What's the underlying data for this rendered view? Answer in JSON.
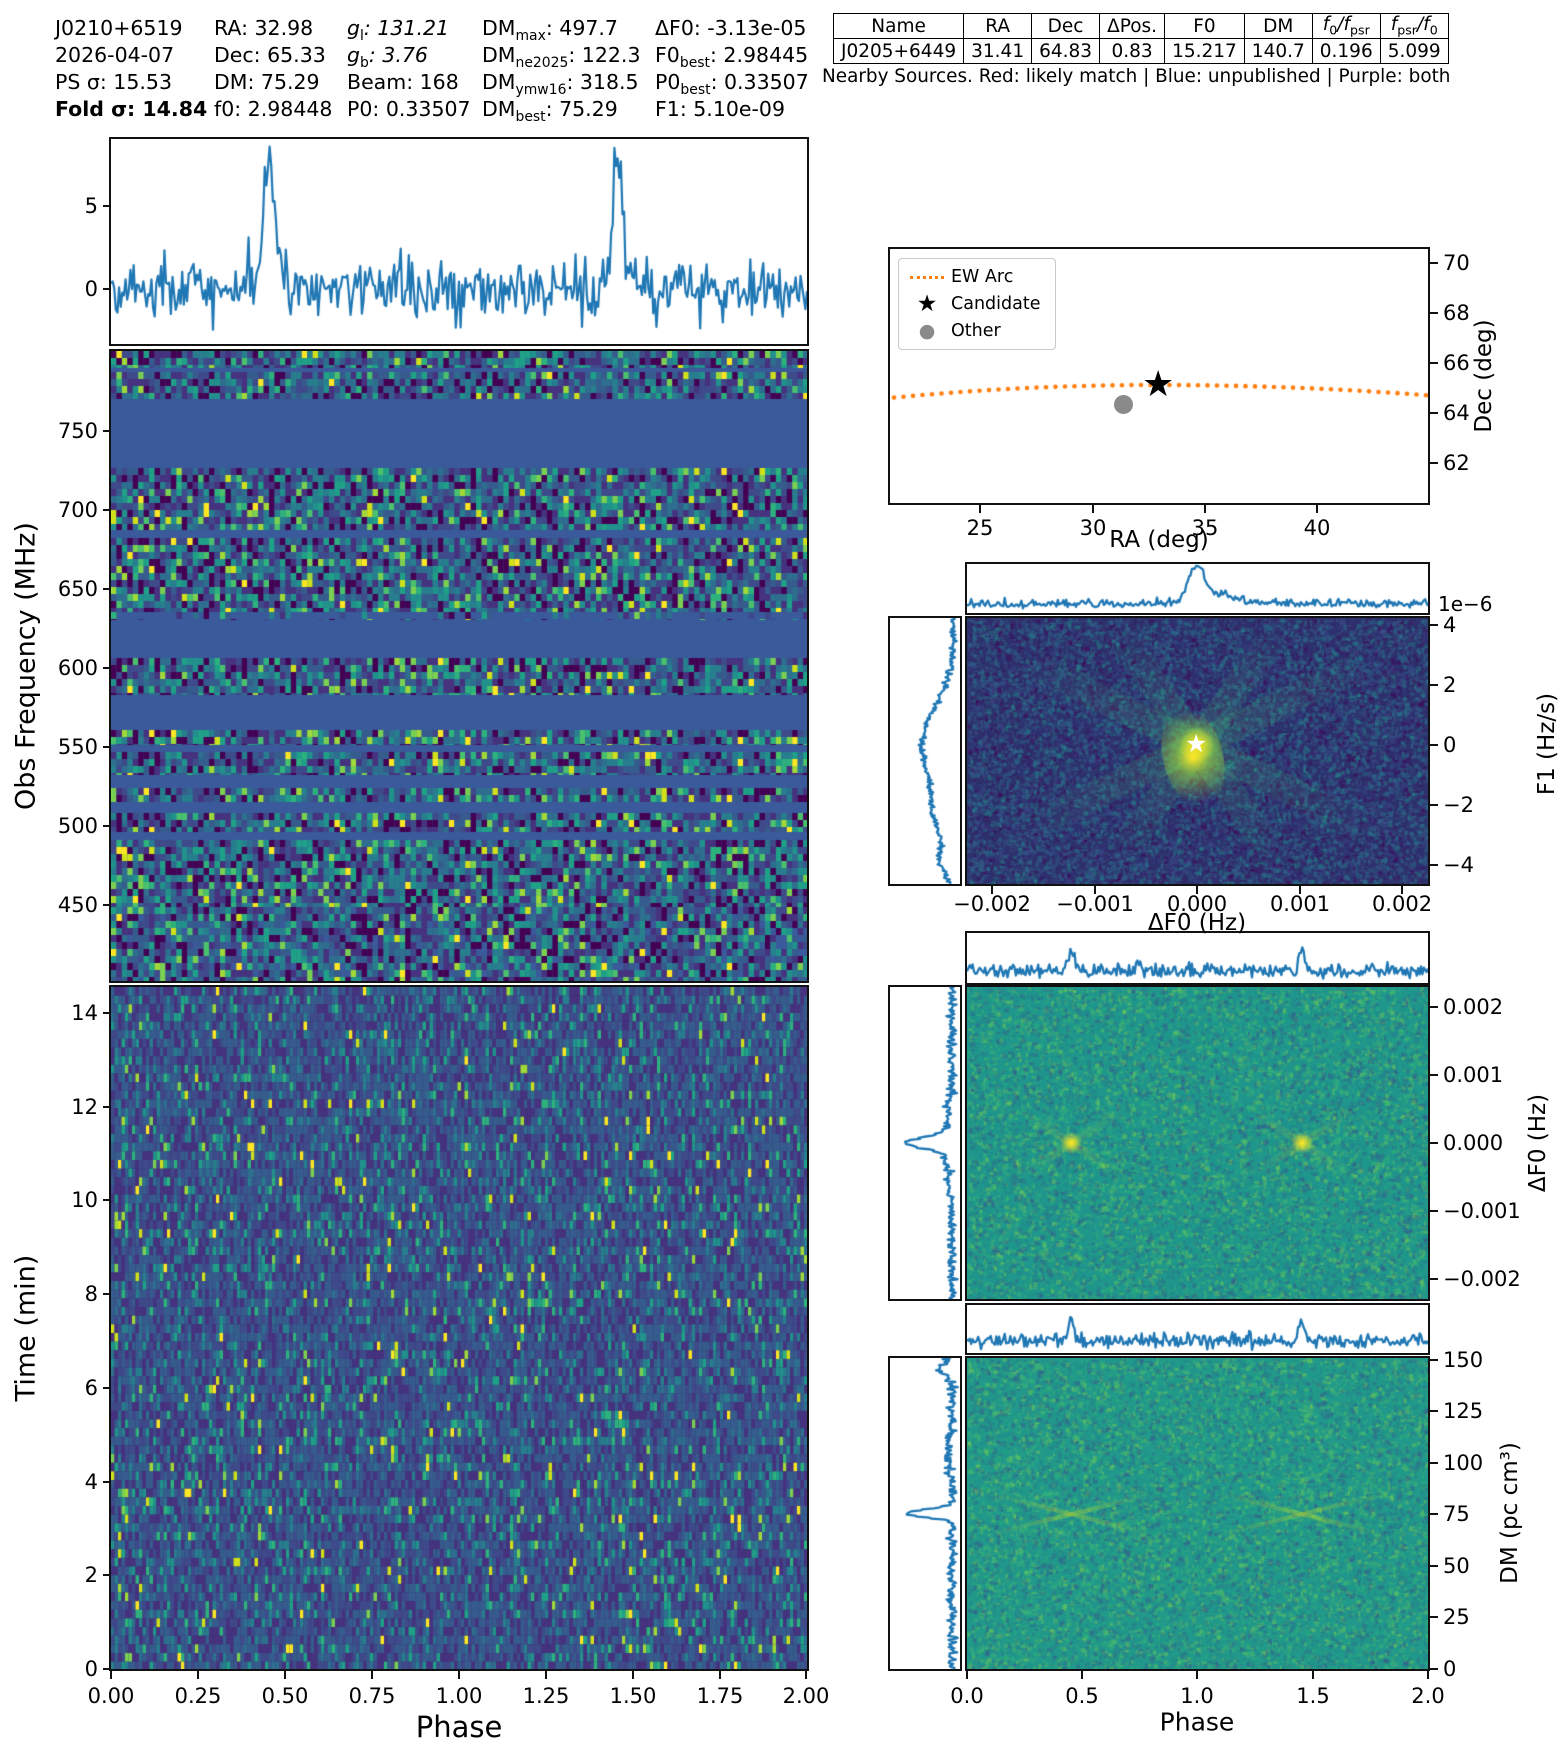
{
  "title": "Pulsar candidate diagnostic plot J0210+6519",
  "header": {
    "rows": [
      [
        {
          "p": "J0210+6519"
        },
        {
          "p": "RA: 32.98"
        },
        {
          "p": "g",
          "i": true,
          "s": "l",
          "r": ": 131.21"
        },
        {
          "p": "DM",
          "s": "max",
          "r": ": 497.7"
        },
        {
          "p": "ΔF0: -3.13e-05"
        }
      ],
      [
        {
          "p": "2026-04-07"
        },
        {
          "p": "Dec: 65.33"
        },
        {
          "p": "g",
          "i": true,
          "s": "b",
          "r": ": 3.76"
        },
        {
          "p": "DM",
          "s": "ne2025",
          "r": ": 122.3"
        },
        {
          "p": "F0",
          "s": "best",
          "r": ": 2.98445"
        }
      ],
      [
        {
          "p": "PS σ: 15.53"
        },
        {
          "p": "DM: 75.29"
        },
        {
          "p": "Beam: 168"
        },
        {
          "p": "DM",
          "s": "ymw16",
          "r": ": 318.5"
        },
        {
          "p": "P0",
          "s": "best",
          "r": ": 0.33507"
        }
      ],
      [
        {
          "p": "Fold σ: 14.84",
          "b": true
        },
        {
          "p": "f0: 2.98448"
        },
        {
          "p": "P0: 0.33507"
        },
        {
          "p": "DM",
          "s": "best",
          "r": ": 75.29"
        },
        {
          "p": "F1: 5.10e-09"
        }
      ]
    ]
  },
  "table": {
    "headers": [
      {
        "p": "Name"
      },
      {
        "p": "RA"
      },
      {
        "p": "Dec"
      },
      {
        "p": "ΔPos."
      },
      {
        "p": "F0"
      },
      {
        "p": "DM"
      },
      {
        "p": "f",
        "i": true,
        "s": "0",
        "r": "/f",
        "s2": "psr"
      },
      {
        "p": "f",
        "i": true,
        "s": "psr",
        "r": "/f",
        "s2": "0"
      }
    ],
    "rows": [
      [
        "J0205+6449",
        "31.41",
        "64.83",
        "0.83",
        "15.217",
        "140.7",
        "0.196",
        "5.099"
      ]
    ],
    "caption": "Nearby Sources. Red: likely match  |  Blue: unpublished  |  Purple: both"
  },
  "legend": {
    "items": [
      {
        "label": "EW Arc",
        "marker": "dotted-line",
        "color": "#ff7f0e"
      },
      {
        "label": "Candidate",
        "marker": "star",
        "color": "#000000"
      },
      {
        "label": "Other",
        "marker": "dot",
        "color": "#8a8a8a"
      }
    ]
  },
  "axes": {
    "profile_y": [
      "5",
      "0"
    ],
    "freq_y": [
      "750",
      "700",
      "650",
      "600",
      "550",
      "500",
      "450"
    ],
    "freq_title": "Obs Frequency (MHz)",
    "time_y": [
      "14",
      "12",
      "10",
      "8",
      "6",
      "4",
      "2",
      "0"
    ],
    "time_title": "Time (min)",
    "phase_x_left": [
      "0.00",
      "0.25",
      "0.50",
      "0.75",
      "1.00",
      "1.25",
      "1.50",
      "1.75",
      "2.00"
    ],
    "phase_title_left": "Phase",
    "sky_x": [
      "25",
      "30",
      "35",
      "40"
    ],
    "sky_xtitle": "RA (deg)",
    "sky_y": [
      "70",
      "68",
      "66",
      "64",
      "62"
    ],
    "sky_ytitle": "Dec (deg)",
    "f1_y": [
      "4",
      "2",
      "0",
      "−2",
      "−4"
    ],
    "f1_title": "F1 (Hz/s)",
    "f1_scale": "1e−6",
    "df0_x": [
      "−0.002",
      "−0.001",
      "0.000",
      "0.001",
      "0.002"
    ],
    "df0_xtitle": "ΔF0 (Hz)",
    "df0_y": [
      "0.002",
      "0.001",
      "0.000",
      "−0.001",
      "−0.002"
    ],
    "df0_ytitle": "ΔF0 (Hz)",
    "dm_y": [
      "150",
      "125",
      "100",
      "75",
      "50",
      "25",
      "0"
    ],
    "dm_ytitle": "DM (pc cm³)",
    "phase_x_right": [
      "0.0",
      "0.5",
      "1.0",
      "1.5",
      "2.0"
    ],
    "phase_title_right": "Phase"
  },
  "colors": {
    "line_blue": "#1f77b4",
    "arc_orange": "#ff7f0e",
    "masked_band": "#3a5a9b",
    "frame": "#111111",
    "other_gray": "#8a8a8a"
  },
  "chart_data": [
    {
      "id": "pulse_profile",
      "type": "line",
      "xlabel": "Phase",
      "xlim": [
        0,
        2
      ],
      "ylim": [
        -3.3,
        9.0
      ],
      "yticks": [
        5,
        0
      ],
      "line_color": "#1f77b4",
      "peaks": [
        {
          "phase": 0.45,
          "amplitude": 7.6
        },
        {
          "phase": 1.45,
          "amplitude": 7.6
        }
      ],
      "noise_sigma": 1.05
    },
    {
      "id": "frequency_vs_phase",
      "type": "heatmap",
      "xlabel": "Phase",
      "ylabel": "Obs Frequency (MHz)",
      "xlim": [
        0,
        2
      ],
      "ylim": [
        400,
        800
      ],
      "yticks": [
        750,
        700,
        650,
        600,
        550,
        500,
        450
      ],
      "note": "random noise waterfall with RFI-masked channels shown as solid blue horizontal bands"
    },
    {
      "id": "time_vs_phase",
      "type": "heatmap",
      "xlabel": "Phase",
      "ylabel": "Time (min)",
      "xlim": [
        0,
        2
      ],
      "ylim": [
        0,
        14.6
      ],
      "yticks": [
        14,
        12,
        10,
        8,
        6,
        4,
        2,
        0
      ],
      "xticks": [
        0.0,
        0.25,
        0.5,
        0.75,
        1.0,
        1.25,
        1.5,
        1.75,
        2.0
      ],
      "note": "uniform dark noise, no visible sub-integration pulse track"
    },
    {
      "id": "sky_position",
      "type": "scatter",
      "xlabel": "RA (deg)",
      "ylabel": "Dec (deg)",
      "xticks": [
        25,
        30,
        35,
        40
      ],
      "yticks": [
        70,
        68,
        66,
        64,
        62
      ],
      "series": [
        {
          "name": "EW Arc",
          "style": "dotted",
          "color": "#ff7f0e"
        },
        {
          "name": "Candidate",
          "marker": "star",
          "color": "#000000",
          "points": [
            [
              32.98,
              65.33
            ]
          ]
        },
        {
          "name": "Other",
          "marker": "circle",
          "color": "#8a8a8a",
          "points": [
            [
              31.41,
              64.83
            ]
          ]
        }
      ]
    },
    {
      "id": "f1_vs_df0",
      "type": "heatmap",
      "xlabel": "ΔF0 (Hz)",
      "ylabel": "F1 (Hz/s)",
      "xticks": [
        -0.002,
        -0.001,
        0.0,
        0.001,
        0.002
      ],
      "yticks": [
        4,
        2,
        0,
        -2,
        -4
      ],
      "y_scale_label": "1e−6",
      "best_point": [
        0.0,
        0.0
      ],
      "note": "bright yellow peak at origin marked with white star, X-shaped green ridges"
    },
    {
      "id": "df0_vs_phase",
      "type": "heatmap",
      "xlabel": "Phase",
      "ylabel": "ΔF0 (Hz)",
      "xlim": [
        0,
        2
      ],
      "yticks": [
        0.002,
        0.001,
        0.0,
        -0.001,
        -0.002
      ],
      "hotspots": [
        [
          0.45,
          0.0
        ],
        [
          1.45,
          0.0
        ]
      ]
    },
    {
      "id": "dm_vs_phase",
      "type": "heatmap",
      "xlabel": "Phase",
      "ylabel": "DM (pc cm³)",
      "xlim": [
        0,
        2
      ],
      "yticks": [
        150,
        125,
        100,
        75,
        50,
        25,
        0
      ],
      "xticks": [
        0.0,
        0.5,
        1.0,
        1.5,
        2.0
      ],
      "hotspots": [
        [
          0.45,
          75
        ],
        [
          1.45,
          75
        ]
      ]
    }
  ]
}
